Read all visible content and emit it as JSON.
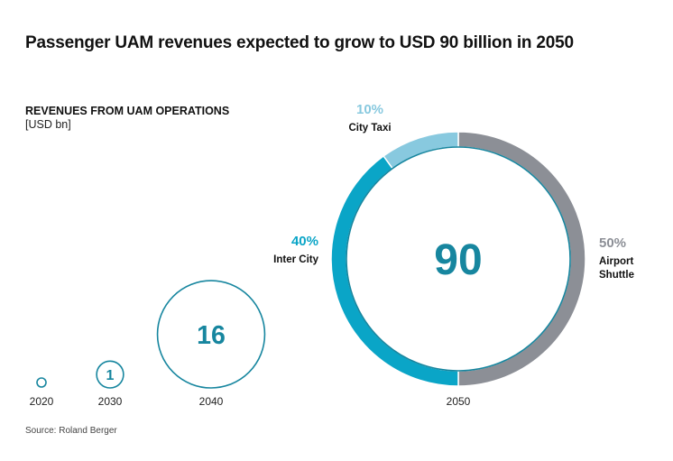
{
  "title": "Passenger UAM revenues expected to grow to USD 90 billion in 2050",
  "subtitle": "REVENUES FROM UAM OPERATIONS",
  "unit": "[USD bn]",
  "source": "Source: Roland Berger",
  "colors": {
    "bubble_stroke": "#17869f",
    "value_text": "#17869f",
    "inter_city": "#0aa5c7",
    "city_taxi": "#88c9df",
    "airport_shuttle": "#8c8f96",
    "inner_line": "#17869f"
  },
  "chart_data": [
    {
      "type": "bubble",
      "title": "Revenues from UAM operations",
      "unit": "USD bn",
      "categories": [
        "2020",
        "2030",
        "2040",
        "2050"
      ],
      "values": [
        0,
        1,
        16,
        90
      ],
      "value_labels": [
        "",
        "1",
        "16",
        "90"
      ]
    },
    {
      "type": "pie",
      "variant": "donut",
      "year": "2050",
      "total": 90,
      "total_label": "90",
      "slices": [
        {
          "name": "Airport Shuttle",
          "label_lines": [
            "Airport",
            "Shuttle"
          ],
          "percent": 50,
          "pct_label": "50%",
          "color": "#8c8f96"
        },
        {
          "name": "Inter City",
          "label_lines": [
            "Inter City"
          ],
          "percent": 40,
          "pct_label": "40%",
          "color": "#0aa5c7"
        },
        {
          "name": "City Taxi",
          "label_lines": [
            "City Taxi"
          ],
          "percent": 10,
          "pct_label": "10%",
          "color": "#88c9df"
        }
      ]
    }
  ]
}
